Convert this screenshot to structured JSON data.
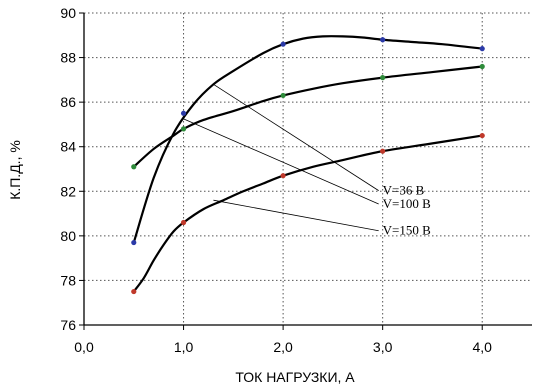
{
  "chart_data": {
    "type": "line",
    "title": "",
    "xlabel": "ТОК НАГРУЗКИ, А",
    "ylabel": "К.П.Д., %",
    "xlim": [
      0,
      4.5
    ],
    "ylim": [
      76,
      90
    ],
    "xticks": [
      0,
      1,
      2,
      3,
      4
    ],
    "xtick_labels": [
      "0,0",
      "1,0",
      "2,0",
      "3,0",
      "4,0"
    ],
    "yticks": [
      76,
      78,
      80,
      82,
      84,
      86,
      88,
      90
    ],
    "ytick_labels": [
      "76",
      "78",
      "80",
      "82",
      "84",
      "86",
      "88",
      "90"
    ],
    "grid": "dotted",
    "series": [
      {
        "name": "V=36 В",
        "x": [
          0.5,
          1.0,
          2.0,
          3.0,
          4.0
        ],
        "y": [
          79.7,
          85.5,
          88.6,
          88.8,
          88.4
        ],
        "curve_x": [
          0.5,
          0.7,
          0.9,
          1.1,
          1.3,
          1.5,
          1.8,
          2.0,
          2.2,
          2.4,
          2.6,
          2.8,
          3.0,
          3.3,
          3.6,
          4.0
        ],
        "curve_y": [
          79.7,
          82.6,
          84.6,
          85.9,
          86.8,
          87.4,
          88.2,
          88.6,
          88.85,
          88.95,
          88.95,
          88.9,
          88.8,
          88.7,
          88.6,
          88.4
        ],
        "marker_color": "#2b3aa8"
      },
      {
        "name": "V=100 В",
        "x": [
          0.5,
          1.0,
          2.0,
          3.0,
          4.0
        ],
        "y": [
          83.1,
          84.8,
          86.3,
          87.1,
          87.6
        ],
        "curve_x": [
          0.5,
          0.7,
          0.9,
          1.0,
          1.2,
          1.5,
          1.8,
          2.0,
          2.3,
          2.6,
          3.0,
          3.5,
          4.0
        ],
        "curve_y": [
          83.1,
          83.9,
          84.5,
          84.8,
          85.2,
          85.6,
          86.05,
          86.3,
          86.6,
          86.85,
          87.1,
          87.35,
          87.6
        ],
        "marker_color": "#2e8b3a"
      },
      {
        "name": "V=150 В",
        "x": [
          0.5,
          1.0,
          2.0,
          3.0,
          4.0
        ],
        "y": [
          77.5,
          80.6,
          82.7,
          83.8,
          84.5
        ],
        "curve_x": [
          0.5,
          0.6,
          0.7,
          0.8,
          0.9,
          1.0,
          1.2,
          1.4,
          1.6,
          1.8,
          2.0,
          2.3,
          2.6,
          3.0,
          3.5,
          4.0
        ],
        "curve_y": [
          77.5,
          78.1,
          78.9,
          79.6,
          80.2,
          80.6,
          81.2,
          81.6,
          82.0,
          82.35,
          82.7,
          83.1,
          83.4,
          83.8,
          84.15,
          84.5
        ],
        "marker_color": "#c0392b"
      }
    ],
    "annotations": [
      {
        "text": "V=36 В",
        "from": [
          1.3,
          86.8
        ],
        "label_at": [
          3.0,
          81.85
        ],
        "series": 0
      },
      {
        "text": "V=100 В",
        "from": [
          1.0,
          85.25
        ],
        "label_at": [
          3.0,
          81.25
        ],
        "series": 1
      },
      {
        "text": "V=150 В",
        "from": [
          1.3,
          81.6
        ],
        "label_at": [
          3.0,
          80.05
        ],
        "series": 2
      }
    ]
  }
}
